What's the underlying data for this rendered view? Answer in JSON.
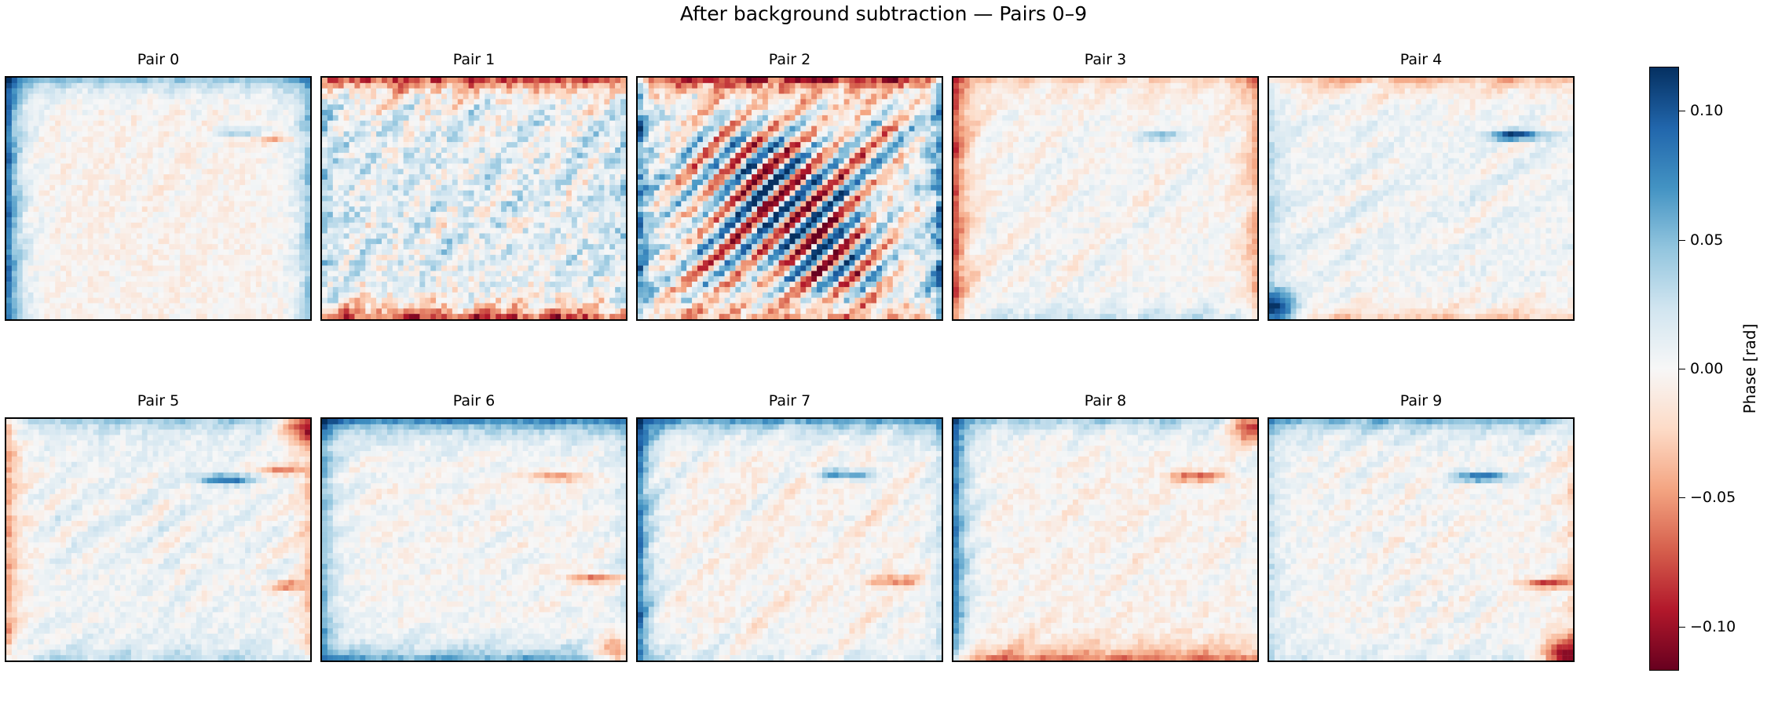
{
  "chart_data": {
    "type": "heatmap",
    "title": "After background subtraction — Pairs 0–9",
    "colormap": [
      "#053061",
      "#2166ac",
      "#4393c3",
      "#92c5de",
      "#d1e5f0",
      "#f7f7f7",
      "#fddbc7",
      "#f4a582",
      "#d6604d",
      "#b2182b",
      "#67001f"
    ],
    "color_range": [
      -0.117,
      0.117
    ],
    "colorbar": {
      "label": "Phase [rad]",
      "ticks": [
        {
          "value": 0.1,
          "label": "0.10"
        },
        {
          "value": 0.05,
          "label": "0.05"
        },
        {
          "value": 0.0,
          "label": "0.00"
        },
        {
          "value": -0.05,
          "label": "−0.05"
        },
        {
          "value": -0.1,
          "label": "−0.10"
        }
      ]
    },
    "panels": [
      {
        "title": "Pair 0",
        "edges": {
          "left": 0.11,
          "right": 0.06,
          "top": 0.06,
          "bottom": 0.0
        },
        "noise": 0.02,
        "streaks": [
          {
            "x": 0.78,
            "y": 0.23,
            "value": 0.05
          },
          {
            "x": 0.88,
            "y": 0.25,
            "value": -0.04
          }
        ],
        "stripes": 0,
        "bias": -0.005
      },
      {
        "title": "Pair 1",
        "edges": {
          "left": 0.03,
          "right": 0.02,
          "top": -0.11,
          "bottom": -0.11
        },
        "noise": 0.05,
        "streaks": [],
        "stripes": 0.0,
        "bias": 0.012
      },
      {
        "title": "Pair 2",
        "edges": {
          "left": 0.09,
          "right": 0.09,
          "top": -0.11,
          "bottom": -0.05
        },
        "noise": 0.05,
        "streaks": [],
        "stripes": 0.11,
        "bias": 0.0
      },
      {
        "title": "Pair 3",
        "edges": {
          "left": -0.09,
          "right": -0.05,
          "top": -0.03,
          "bottom": 0.03
        },
        "noise": 0.02,
        "streaks": [
          {
            "x": 0.68,
            "y": 0.24,
            "value": 0.05
          }
        ],
        "stripes": 0,
        "bias": 0.0
      },
      {
        "title": "Pair 4",
        "edges": {
          "left": 0.03,
          "right": 0.0,
          "top": -0.05,
          "bottom": -0.04
        },
        "noise": 0.02,
        "streaks": [
          {
            "x": 0.82,
            "y": 0.24,
            "value": 0.11
          }
        ],
        "stripes": 0,
        "bias": 0.005,
        "corner": {
          "x": 0.02,
          "y": 0.96,
          "value": 0.11
        }
      },
      {
        "title": "Pair 5",
        "edges": {
          "left": -0.06,
          "right": -0.04,
          "top": 0.04,
          "bottom": 0.03
        },
        "noise": 0.02,
        "streaks": [
          {
            "x": 0.72,
            "y": 0.25,
            "value": 0.09
          },
          {
            "x": 0.9,
            "y": 0.21,
            "value": -0.06
          },
          {
            "x": 0.93,
            "y": 0.69,
            "value": -0.05
          }
        ],
        "stripes": 0,
        "bias": 0.005,
        "corner": {
          "x": 0.98,
          "y": 0.02,
          "value": -0.1
        }
      },
      {
        "title": "Pair 6",
        "edges": {
          "left": 0.06,
          "right": 0.02,
          "top": 0.09,
          "bottom": 0.07
        },
        "noise": 0.02,
        "streaks": [
          {
            "x": 0.78,
            "y": 0.24,
            "value": -0.06
          },
          {
            "x": 0.9,
            "y": 0.66,
            "value": -0.07
          }
        ],
        "stripes": 0,
        "bias": 0.0,
        "corner": {
          "x": 0.98,
          "y": 0.98,
          "value": -0.1
        }
      },
      {
        "title": "Pair 7",
        "edges": {
          "left": 0.1,
          "right": 0.03,
          "top": 0.08,
          "bottom": 0.02
        },
        "noise": 0.02,
        "streaks": [
          {
            "x": 0.68,
            "y": 0.23,
            "value": 0.08
          },
          {
            "x": 0.85,
            "y": 0.67,
            "value": -0.06
          }
        ],
        "stripes": 0,
        "bias": -0.004
      },
      {
        "title": "Pair 8",
        "edges": {
          "left": 0.1,
          "right": 0.01,
          "top": 0.05,
          "bottom": -0.07
        },
        "noise": 0.02,
        "streaks": [
          {
            "x": 0.8,
            "y": 0.24,
            "value": -0.07
          }
        ],
        "stripes": 0,
        "bias": -0.004,
        "corner": {
          "x": 0.98,
          "y": 0.02,
          "value": -0.11
        }
      },
      {
        "title": "Pair 9",
        "edges": {
          "left": 0.03,
          "right": -0.02,
          "top": 0.06,
          "bottom": 0.02
        },
        "noise": 0.02,
        "streaks": [
          {
            "x": 0.7,
            "y": 0.24,
            "value": 0.1
          },
          {
            "x": 0.92,
            "y": 0.68,
            "value": -0.08
          }
        ],
        "stripes": 0,
        "bias": 0.0,
        "corner": {
          "x": 0.98,
          "y": 0.98,
          "value": -0.11
        }
      }
    ]
  }
}
